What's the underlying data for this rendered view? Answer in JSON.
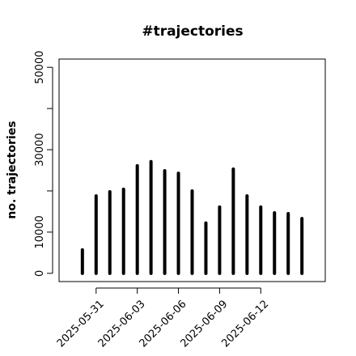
{
  "chart_data": {
    "type": "bar",
    "title": "#trajectories",
    "y_label": "no. trajectories",
    "x": [
      "2025-05-30",
      "2025-05-31",
      "2025-06-01",
      "2025-06-02",
      "2025-06-03",
      "2025-06-04",
      "2025-06-05",
      "2025-06-06",
      "2025-06-07",
      "2025-06-08",
      "2025-06-09",
      "2025-06-10",
      "2025-06-11",
      "2025-06-12",
      "2025-06-13",
      "2025-06-14",
      "2025-06-15"
    ],
    "values": [
      5700,
      18800,
      19800,
      20400,
      26100,
      27100,
      24900,
      24300,
      20000,
      12200,
      16100,
      25300,
      18800,
      16100,
      14700,
      14500,
      13300
    ],
    "color": "#000000",
    "xlim": [
      "2025-05-28T07:12Z",
      "2025-06-16T16:48Z"
    ],
    "xticks": [
      "2025-05-31",
      "2025-06-03",
      "2025-06-06",
      "2025-06-09",
      "2025-06-12"
    ],
    "ylim": [
      -2000,
      52000
    ],
    "yticks": [
      0,
      10000,
      {
        "value": 20000,
        "label": null
      },
      30000,
      {
        "value": 40000,
        "label": null
      },
      50000
    ],
    "grid": false
  }
}
